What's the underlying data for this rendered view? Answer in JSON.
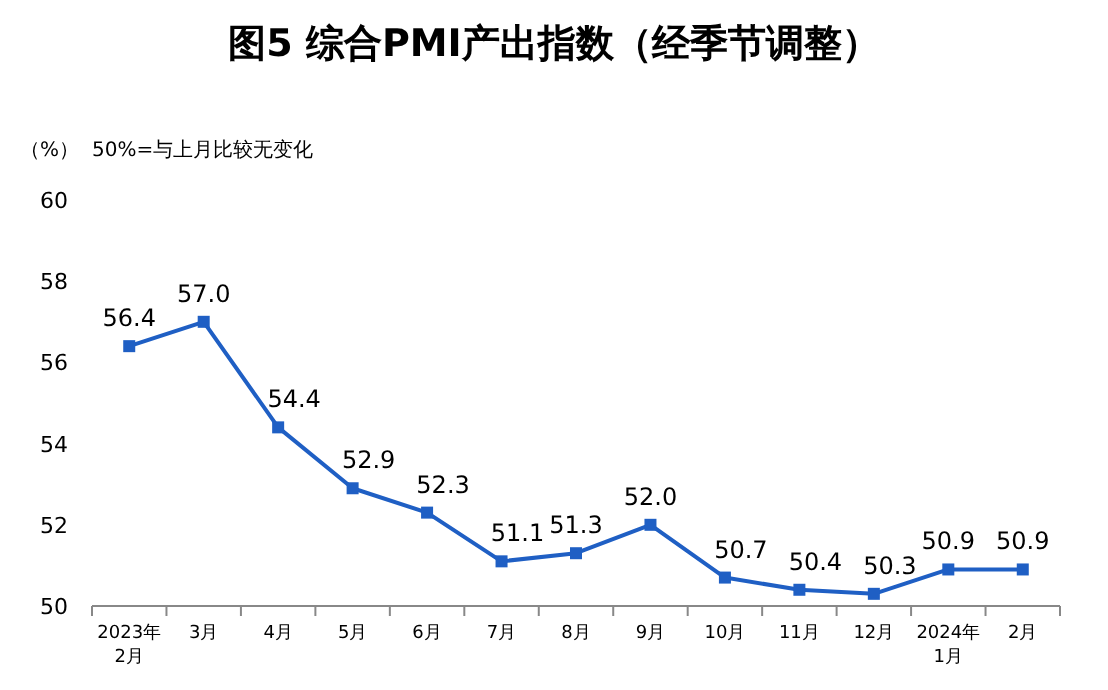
{
  "chart_data": {
    "type": "line",
    "title": "图5  综合PMI产出指数（经季节调整）",
    "ylabel": "（%）",
    "annotations": [
      "50%=与上月比较无变化"
    ],
    "categories": [
      "2023年\n2月",
      "3月",
      "4月",
      "5月",
      "6月",
      "7月",
      "8月",
      "9月",
      "10月",
      "11月",
      "12月",
      "2024年\n1月",
      "2月"
    ],
    "values": [
      56.4,
      57.0,
      54.4,
      52.9,
      52.3,
      51.1,
      51.3,
      52.0,
      50.7,
      50.4,
      50.3,
      50.9,
      50.9
    ],
    "value_labels": [
      "56.4",
      "57.0",
      "54.4",
      "52.9",
      "52.3",
      "51.1",
      "51.3",
      "52.0",
      "50.7",
      "50.4",
      "50.3",
      "50.9",
      "50.9"
    ],
    "color": "#1f5fc4",
    "ylim": [
      50,
      60
    ],
    "yticks": [
      50,
      52,
      54,
      56,
      58,
      60
    ],
    "marker": "square",
    "line_style": "solid"
  }
}
